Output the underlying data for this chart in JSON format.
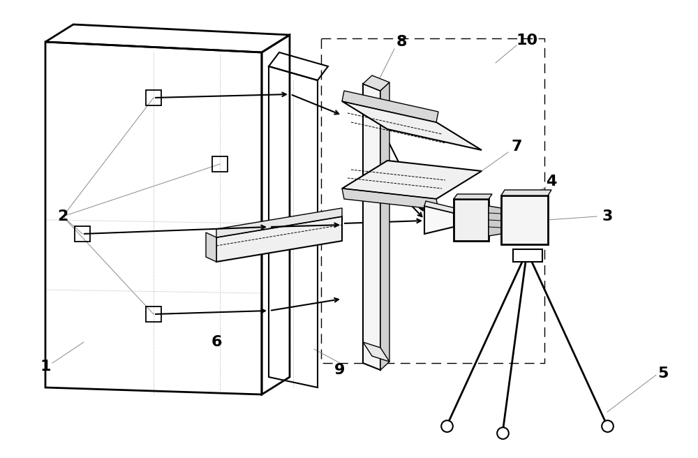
{
  "bg_color": "#ffffff",
  "lc": "#000000",
  "gc": "#888888",
  "dlc": "#aaaaaa"
}
